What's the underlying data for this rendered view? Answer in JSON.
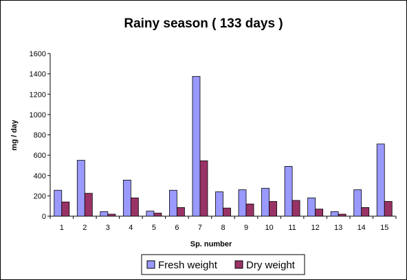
{
  "chart_data": {
    "type": "bar",
    "title": "Rainy season ( 133 days )",
    "xlabel": "Sp. number",
    "ylabel": "mg / day",
    "ylim": [
      0,
      1600
    ],
    "yticks": [
      0,
      200,
      400,
      600,
      800,
      1000,
      1200,
      1400,
      1600
    ],
    "grid": false,
    "legend_position": "bottom",
    "categories": [
      "1",
      "2",
      "3",
      "4",
      "5",
      "6",
      "7",
      "8",
      "9",
      "10",
      "11",
      "12",
      "13",
      "14",
      "15"
    ],
    "series": [
      {
        "name": "Fresh weight",
        "color": "#9999FF",
        "values": [
          255,
          550,
          45,
          355,
          50,
          255,
          1375,
          240,
          260,
          275,
          490,
          180,
          45,
          260,
          710
        ]
      },
      {
        "name": "Dry weight",
        "color": "#993366",
        "values": [
          140,
          225,
          20,
          180,
          30,
          85,
          545,
          80,
          120,
          145,
          155,
          70,
          20,
          85,
          145
        ]
      }
    ]
  }
}
